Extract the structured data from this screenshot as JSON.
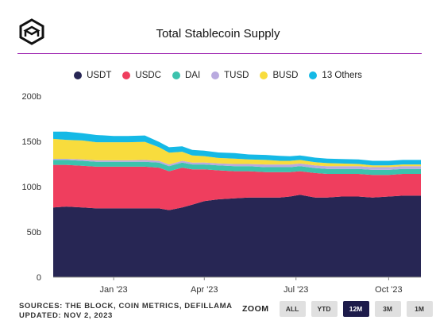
{
  "header": {
    "title": "Total Stablecoin Supply",
    "logo_icon": "cube-logo-icon"
  },
  "colors": {
    "divider": "#9b1fae",
    "USDT": "#272654",
    "USDC": "#ef3e5e",
    "DAI": "#3cc2ad",
    "TUSD": "#b9aadf",
    "BUSD": "#f8dc3d",
    "13 Others": "#15b9e6"
  },
  "chart_data": {
    "type": "area",
    "stacked": true,
    "title": "Total Stablecoin Supply",
    "xlabel": "",
    "ylabel": "",
    "ylim": [
      0,
      200
    ],
    "y_unit": "b",
    "y_ticks": [
      "0",
      "50b",
      "100b",
      "150b",
      "200b"
    ],
    "x_range": [
      "2022-11-02",
      "2023-11-02"
    ],
    "x_ticks": [
      "Jan '23",
      "Apr '23",
      "Jul '23",
      "Oct '23"
    ],
    "grid": false,
    "legend_position": "top",
    "x": [
      "2022-11-02",
      "2022-11-15",
      "2022-12-01",
      "2022-12-15",
      "2023-01-01",
      "2023-01-15",
      "2023-02-01",
      "2023-02-15",
      "2023-02-25",
      "2023-03-10",
      "2023-03-20",
      "2023-04-01",
      "2023-04-15",
      "2023-05-01",
      "2023-05-15",
      "2023-06-01",
      "2023-06-15",
      "2023-06-25",
      "2023-07-05",
      "2023-07-20",
      "2023-08-01",
      "2023-08-15",
      "2023-09-01",
      "2023-09-15",
      "2023-10-01",
      "2023-10-15",
      "2023-11-02"
    ],
    "series": [
      {
        "name": "USDT",
        "values": [
          77,
          78,
          77,
          76,
          76,
          76,
          76,
          76,
          74,
          77,
          80,
          84,
          86,
          87,
          88,
          88,
          88,
          89,
          91,
          88,
          88,
          89,
          89,
          88,
          89,
          90,
          90
        ]
      },
      {
        "name": "USDC",
        "values": [
          47,
          46,
          46,
          46,
          46,
          46,
          46,
          45,
          43,
          44,
          39,
          35,
          32,
          30,
          29,
          28,
          28,
          27,
          26,
          27,
          26,
          25,
          25,
          25,
          24,
          24,
          24
        ]
      },
      {
        "name": "DAI",
        "values": [
          5.5,
          5.5,
          5.5,
          5.5,
          5.5,
          5.5,
          5.5,
          5.5,
          5.5,
          5.5,
          5.5,
          5.5,
          5.5,
          5.5,
          5.5,
          5.5,
          5.5,
          5.5,
          5.5,
          5.5,
          5.5,
          5.5,
          5.5,
          5.5,
          5.5,
          5.5,
          5.5
        ]
      },
      {
        "name": "TUSD",
        "values": [
          1.2,
          1.2,
          1.5,
          1.5,
          1.5,
          1.5,
          2,
          2,
          2,
          2,
          2,
          2.2,
          2.2,
          2.5,
          2.5,
          3,
          3,
          3,
          3,
          3,
          3,
          3,
          3,
          3,
          3,
          3,
          3
        ]
      },
      {
        "name": "BUSD",
        "values": [
          22,
          21,
          21,
          20,
          20,
          20,
          20,
          15,
          13,
          10,
          8,
          7,
          6,
          6,
          5,
          5,
          4,
          4,
          4,
          3.5,
          3.5,
          3,
          2.5,
          2,
          2,
          2,
          2
        ]
      },
      {
        "name": "13 Others",
        "values": [
          8,
          9,
          8,
          8,
          7,
          7,
          7,
          6,
          6,
          6,
          6,
          6,
          6,
          6,
          5.5,
          5.5,
          5.5,
          5,
          5,
          5,
          5,
          5,
          5,
          5,
          5,
          5,
          5
        ]
      }
    ]
  },
  "footer": {
    "sources": "SOURCES: THE BLOCK, COIN METRICS, DEFILLAMA",
    "updated": "UPDATED: NOV 2, 2023",
    "zoom_label": "ZOOM",
    "zoom_buttons": [
      "ALL",
      "YTD",
      "12M",
      "3M",
      "1M"
    ],
    "zoom_selected": "12M"
  }
}
